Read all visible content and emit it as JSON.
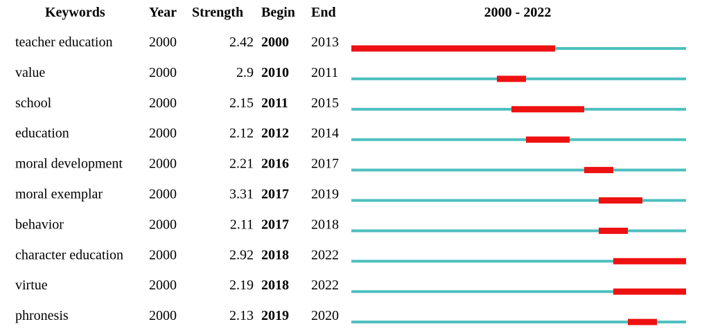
{
  "chart_data": {
    "type": "table",
    "title": "",
    "headers": {
      "keyword": "Keywords",
      "year": "Year",
      "strength": "Strength",
      "begin": "Begin",
      "end": "End",
      "timeline": "2000 - 2022"
    },
    "timeline_range": [
      2000,
      2022
    ],
    "rows": [
      {
        "keyword": "teacher education",
        "year": "2000",
        "strength": "2.42",
        "begin": "2000",
        "end": "2013"
      },
      {
        "keyword": "value",
        "year": "2000",
        "strength": "2.9",
        "begin": "2010",
        "end": "2011"
      },
      {
        "keyword": "school",
        "year": "2000",
        "strength": "2.15",
        "begin": "2011",
        "end": "2015"
      },
      {
        "keyword": "education",
        "year": "2000",
        "strength": "2.12",
        "begin": "2012",
        "end": "2014"
      },
      {
        "keyword": "moral development",
        "year": "2000",
        "strength": "2.21",
        "begin": "2016",
        "end": "2017"
      },
      {
        "keyword": "moral exemplar",
        "year": "2000",
        "strength": "3.31",
        "begin": "2017",
        "end": "2019"
      },
      {
        "keyword": "behavior",
        "year": "2000",
        "strength": "2.11",
        "begin": "2017",
        "end": "2018"
      },
      {
        "keyword": "character education",
        "year": "2000",
        "strength": "2.92",
        "begin": "2018",
        "end": "2022"
      },
      {
        "keyword": "virtue",
        "year": "2000",
        "strength": "2.19",
        "begin": "2018",
        "end": "2022"
      },
      {
        "keyword": "phronesis",
        "year": "2000",
        "strength": "2.13",
        "begin": "2019",
        "end": "2020"
      }
    ],
    "colors": {
      "baseline": "#4dbfbf",
      "burst": "#ee1111"
    }
  }
}
